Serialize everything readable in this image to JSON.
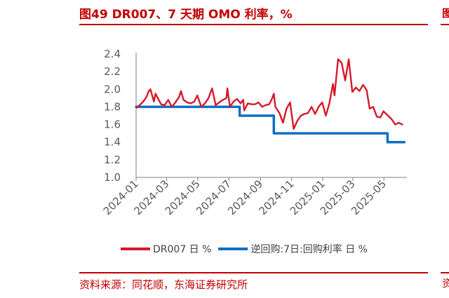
{
  "figure": {
    "title": "图49 DR007、7 天期 OMO 利率，%",
    "source": "资料来源：同花顺，东海证券研究所",
    "edge_glyph_top": "图",
    "edge_glyph_bottom": "资"
  },
  "colors": {
    "dr007": "#d7192b",
    "omo": "#0f6fc6",
    "accent": "#c00000"
  },
  "chart_data": {
    "type": "line",
    "title": "",
    "xlabel": "",
    "ylabel": "",
    "ylim": [
      1.0,
      2.4
    ],
    "yticks": [
      "1.0",
      "1.2",
      "1.4",
      "1.6",
      "1.8",
      "2.0",
      "2.2",
      "2.4"
    ],
    "xlim": [
      "2024-01-01",
      "2025-06-15"
    ],
    "xticks": [
      "2024-01",
      "2024-03",
      "2024-05",
      "2024-07",
      "2024-09",
      "2024-11",
      "2025-01",
      "2025-03",
      "2025-05"
    ],
    "grid": false,
    "legend_position": "bottom",
    "series": [
      {
        "name": "DR007 日 %",
        "color": "#d7192b",
        "x": [
          "2024-01-02",
          "2024-01-08",
          "2024-01-15",
          "2024-01-22",
          "2024-01-25",
          "2024-01-29",
          "2024-02-05",
          "2024-02-08",
          "2024-02-19",
          "2024-02-26",
          "2024-03-04",
          "2024-03-11",
          "2024-03-18",
          "2024-03-25",
          "2024-03-29",
          "2024-04-03",
          "2024-04-10",
          "2024-04-17",
          "2024-04-24",
          "2024-04-30",
          "2024-05-08",
          "2024-05-15",
          "2024-05-22",
          "2024-05-29",
          "2024-06-05",
          "2024-06-12",
          "2024-06-19",
          "2024-06-26",
          "2024-06-28",
          "2024-07-03",
          "2024-07-10",
          "2024-07-17",
          "2024-07-24",
          "2024-07-29",
          "2024-07-31",
          "2024-08-07",
          "2024-08-14",
          "2024-08-21",
          "2024-08-28",
          "2024-09-04",
          "2024-09-11",
          "2024-09-18",
          "2024-09-24",
          "2024-09-27",
          "2024-09-30",
          "2024-10-08",
          "2024-10-15",
          "2024-10-22",
          "2024-10-29",
          "2024-11-05",
          "2024-11-12",
          "2024-11-19",
          "2024-11-26",
          "2024-12-03",
          "2024-12-10",
          "2024-12-17",
          "2024-12-24",
          "2024-12-31",
          "2025-01-07",
          "2025-01-14",
          "2025-01-21",
          "2025-01-24",
          "2025-01-31",
          "2025-02-07",
          "2025-02-14",
          "2025-02-21",
          "2025-02-28",
          "2025-03-07",
          "2025-03-14",
          "2025-03-21",
          "2025-03-28",
          "2025-04-03",
          "2025-04-10",
          "2025-04-17",
          "2025-04-24",
          "2025-04-30",
          "2025-05-09",
          "2025-05-16",
          "2025-05-23",
          "2025-05-30",
          "2025-06-06"
        ],
        "values": [
          1.79,
          1.82,
          1.86,
          1.92,
          1.97,
          2.0,
          1.86,
          1.95,
          1.83,
          1.82,
          1.88,
          1.8,
          1.85,
          1.91,
          1.98,
          1.88,
          1.85,
          1.84,
          1.86,
          1.93,
          1.8,
          1.84,
          1.9,
          2.01,
          1.82,
          1.85,
          1.88,
          1.9,
          2.01,
          1.8,
          1.86,
          1.89,
          1.84,
          1.88,
          1.76,
          1.84,
          1.83,
          1.83,
          1.85,
          1.8,
          1.82,
          1.83,
          1.9,
          1.95,
          1.8,
          1.73,
          1.62,
          1.78,
          1.85,
          1.55,
          1.64,
          1.7,
          1.72,
          1.73,
          1.8,
          1.72,
          1.8,
          1.85,
          1.7,
          1.84,
          2.06,
          1.93,
          2.34,
          2.3,
          2.1,
          2.34,
          1.97,
          2.02,
          1.98,
          2.05,
          1.99,
          1.78,
          1.8,
          1.69,
          1.68,
          1.75,
          1.7,
          1.66,
          1.6,
          1.62,
          1.6
        ]
      },
      {
        "name": "逆回购:7日:回购利率 日 %",
        "color": "#0f6fc6",
        "x": [
          "2024-01-01",
          "2024-07-22",
          "2024-07-22",
          "2024-09-27",
          "2024-09-27",
          "2025-05-08",
          "2025-05-08",
          "2025-06-10"
        ],
        "values": [
          1.8,
          1.8,
          1.7,
          1.7,
          1.5,
          1.5,
          1.4,
          1.4
        ]
      }
    ]
  }
}
